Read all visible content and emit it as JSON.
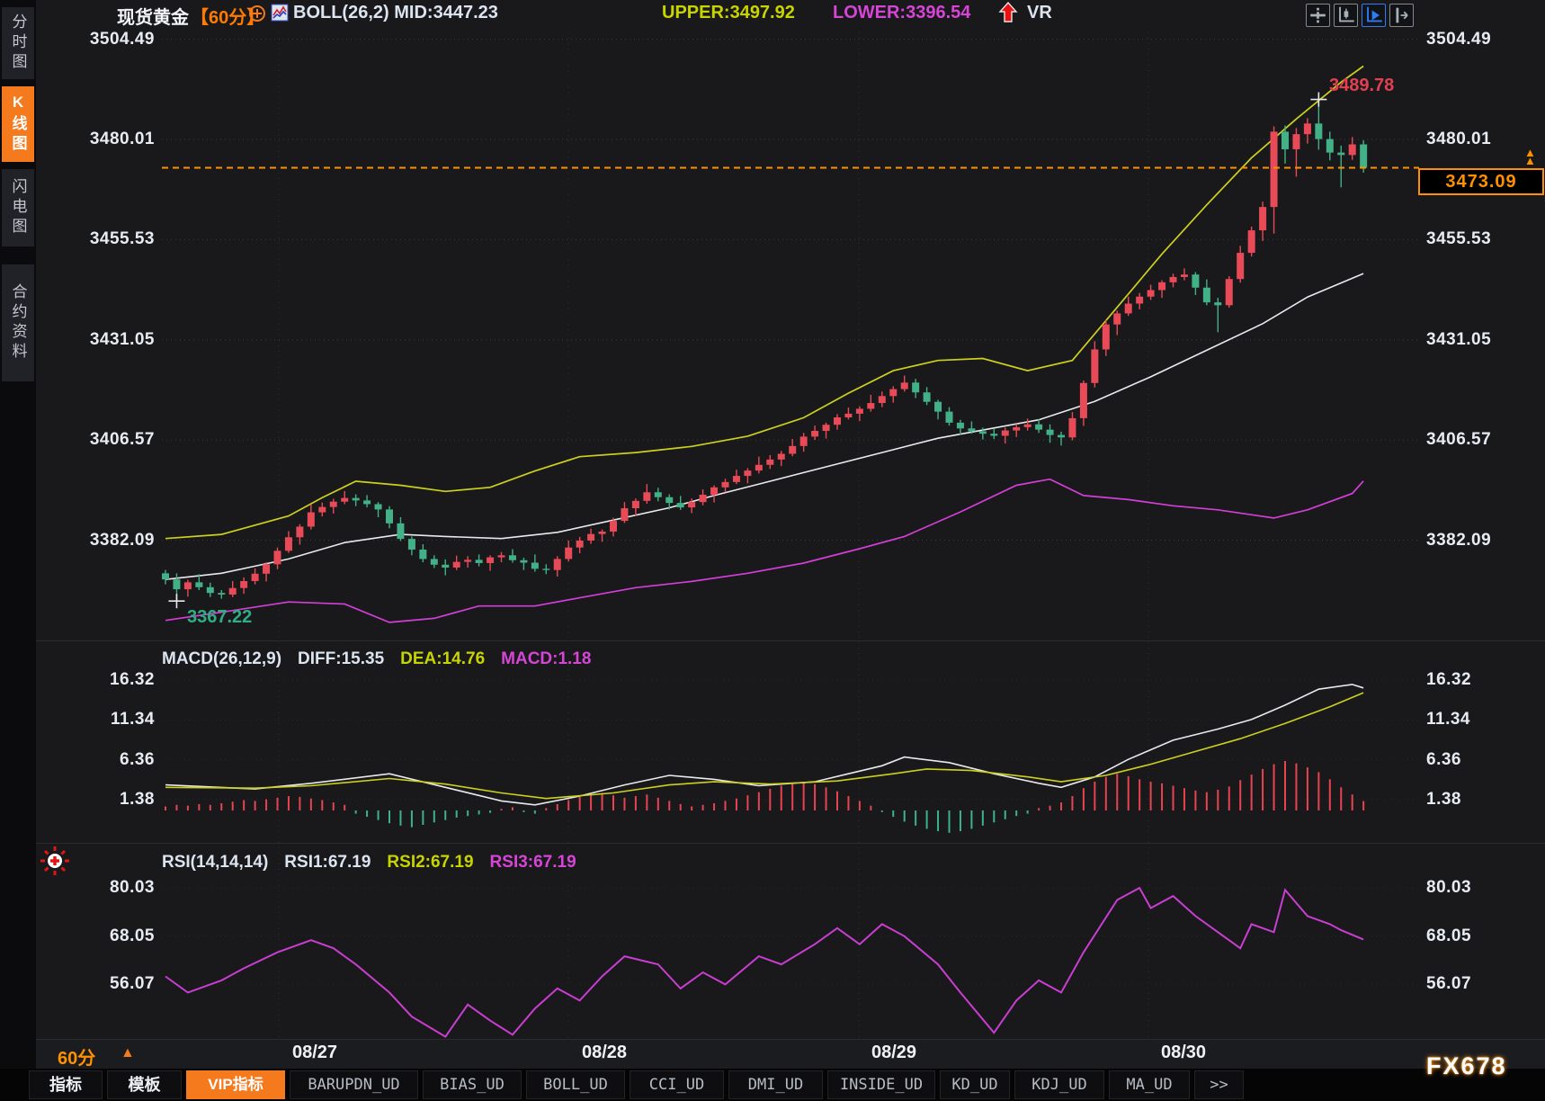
{
  "window": {
    "watermark": "FX678"
  },
  "glyphs": {
    "triangle_up": "▲"
  },
  "colors": {
    "accent_orange": "#f5791d",
    "price_orange": "#ff9100",
    "candle_up": "#e84b57",
    "candle_down": "#43b187",
    "boll_upper_yellow": "#cdd11c",
    "boll_mid_white": "#e8eaee",
    "boll_lower_magenta": "#d33fd6",
    "macd_diff_white": "#e8eaee",
    "macd_dea_yellow": "#cdd11c",
    "macd_hist_up": "#e8434e",
    "macd_hist_down": "#3db387",
    "rsi_line": "#c93ed0",
    "grid": "#3a3b40",
    "grid_v": "#2e2f33",
    "grid_faint": "#26262a",
    "anno_high_red": "#e0404f",
    "anno_low_green": "#2fae84"
  },
  "sidebar": {
    "items": [
      {
        "label": "分时图",
        "active": false
      },
      {
        "label": "K线图",
        "active": true
      },
      {
        "label": "闪电图",
        "active": false
      },
      {
        "label": "合约资料",
        "active": false
      }
    ]
  },
  "header": {
    "symbol": "现货黄金",
    "period": "【60分】",
    "boll_label": "BOLL(26,2)",
    "mid": "MID:3447.23",
    "upper": "UPPER:3497.92",
    "lower": "LOWER:3396.54",
    "vr": "VR"
  },
  "price_box": {
    "value": "3473.09"
  },
  "annotations": {
    "high": "3489.78",
    "low": "3367.22"
  },
  "macd_header": {
    "name": "MACD(26,12,9)",
    "diff": "DIFF:15.35",
    "dea": "DEA:14.76",
    "macd": "MACD:1.18"
  },
  "rsi_header": {
    "name": "RSI(14,14,14)",
    "rsi1": "RSI1:67.19",
    "rsi2": "RSI2:67.19",
    "rsi3": "RSI3:67.19"
  },
  "bottom_axis": {
    "period_label": "60分"
  },
  "bottom_tabs": [
    "指标",
    "模板",
    "VIP指标",
    "BARUPDN_UD",
    "BIAS_UD",
    "BOLL_UD",
    "CCI_UD",
    "DMI_UD",
    "INSIDE_UD",
    "KD_UD",
    "KDJ_UD",
    "MA_UD",
    ">>"
  ],
  "chart_data": {
    "type": "candlestick",
    "title": "现货黄金 60分 K线图",
    "interval": "60分",
    "legend_position": "top",
    "grid": true,
    "price_axis": [
      3504.49,
      3480.01,
      3455.53,
      3431.05,
      3406.57,
      3382.09
    ],
    "dates": [
      "08/27",
      "08/28",
      "08/29",
      "08/30"
    ],
    "current_price": 3473.09,
    "session_high": 3489.78,
    "session_low": 3367.22,
    "high_candle_index": 103,
    "low_candle_index": 1,
    "candles": [
      [
        3374.0,
        3374.8,
        3371.3,
        3372.5
      ],
      [
        3372.5,
        3374.0,
        3367.22,
        3370.1
      ],
      [
        3370.1,
        3372.4,
        3368.3,
        3371.8
      ],
      [
        3371.8,
        3373.8,
        3369.9,
        3370.6
      ],
      [
        3370.6,
        3371.7,
        3368.2,
        3369.2
      ],
      [
        3369.2,
        3369.9,
        3367.8,
        3368.8
      ],
      [
        3368.8,
        3372.1,
        3368.2,
        3370.4
      ],
      [
        3370.4,
        3373.0,
        3369.0,
        3372.1
      ],
      [
        3372.1,
        3375.2,
        3371.3,
        3373.9
      ],
      [
        3373.9,
        3376.7,
        3372.0,
        3376.2
      ],
      [
        3376.2,
        3380.3,
        3375.0,
        3379.5
      ],
      [
        3379.5,
        3384.3,
        3379.0,
        3382.8
      ],
      [
        3382.8,
        3386.0,
        3381.0,
        3385.4
      ],
      [
        3385.4,
        3390.9,
        3384.7,
        3388.9
      ],
      [
        3388.9,
        3391.3,
        3387.9,
        3390.2
      ],
      [
        3390.2,
        3392.2,
        3388.6,
        3391.5
      ],
      [
        3391.5,
        3394.1,
        3390.9,
        3392.4
      ],
      [
        3392.4,
        3393.3,
        3390.4,
        3391.8
      ],
      [
        3391.8,
        3393.1,
        3390.1,
        3390.9
      ],
      [
        3390.9,
        3391.4,
        3387.7,
        3389.6
      ],
      [
        3389.6,
        3390.4,
        3385.0,
        3386.2
      ],
      [
        3386.2,
        3387.7,
        3381.9,
        3382.4
      ],
      [
        3382.4,
        3383.0,
        3378.4,
        3379.8
      ],
      [
        3379.8,
        3381.1,
        3376.7,
        3377.5
      ],
      [
        3377.5,
        3378.4,
        3375.3,
        3376.1
      ],
      [
        3376.1,
        3377.4,
        3373.5,
        3375.4
      ],
      [
        3375.4,
        3378.3,
        3374.8,
        3376.8
      ],
      [
        3376.8,
        3378.2,
        3375.4,
        3377.3
      ],
      [
        3377.3,
        3378.6,
        3375.7,
        3376.5
      ],
      [
        3376.5,
        3378.4,
        3374.6,
        3377.9
      ],
      [
        3377.9,
        3379.2,
        3376.7,
        3378.4
      ],
      [
        3378.4,
        3379.9,
        3376.6,
        3377.2
      ],
      [
        3377.2,
        3377.8,
        3374.8,
        3376.6
      ],
      [
        3376.6,
        3378.6,
        3374.4,
        3375.1
      ],
      [
        3375.1,
        3376.2,
        3373.8,
        3374.8
      ],
      [
        3374.8,
        3378.2,
        3373.2,
        3377.5
      ],
      [
        3377.5,
        3382.0,
        3376.9,
        3380.3
      ],
      [
        3380.3,
        3382.9,
        3378.9,
        3382.0
      ],
      [
        3382.0,
        3384.9,
        3381.2,
        3383.6
      ],
      [
        3383.6,
        3384.7,
        3381.7,
        3384.2
      ],
      [
        3384.2,
        3387.6,
        3383.0,
        3386.8
      ],
      [
        3386.8,
        3391.4,
        3386.3,
        3389.9
      ],
      [
        3389.9,
        3392.3,
        3388.1,
        3391.7
      ],
      [
        3391.7,
        3395.8,
        3391.0,
        3393.8
      ],
      [
        3393.8,
        3394.9,
        3391.6,
        3392.6
      ],
      [
        3392.6,
        3393.3,
        3389.6,
        3391.2
      ],
      [
        3391.2,
        3392.9,
        3389.5,
        3390.1
      ],
      [
        3390.1,
        3392.3,
        3388.7,
        3391.4
      ],
      [
        3391.4,
        3394.5,
        3390.6,
        3393.2
      ],
      [
        3393.2,
        3395.5,
        3391.3,
        3395.0
      ],
      [
        3395.0,
        3397.1,
        3393.8,
        3396.3
      ],
      [
        3396.3,
        3399.3,
        3395.8,
        3397.8
      ],
      [
        3397.8,
        3399.7,
        3396.0,
        3399.1
      ],
      [
        3399.1,
        3402.5,
        3398.4,
        3400.5
      ],
      [
        3400.5,
        3402.9,
        3399.5,
        3401.8
      ],
      [
        3401.8,
        3403.9,
        3400.2,
        3403.2
      ],
      [
        3403.2,
        3406.8,
        3402.6,
        3405.1
      ],
      [
        3405.1,
        3408.3,
        3403.7,
        3407.4
      ],
      [
        3407.4,
        3410.1,
        3406.6,
        3408.8
      ],
      [
        3408.8,
        3410.8,
        3406.9,
        3410.3
      ],
      [
        3410.3,
        3412.9,
        3409.1,
        3412.1
      ],
      [
        3412.1,
        3414.5,
        3411.6,
        3413.0
      ],
      [
        3413.0,
        3414.8,
        3411.2,
        3414.2
      ],
      [
        3414.2,
        3417.6,
        3413.5,
        3415.6
      ],
      [
        3415.6,
        3418.4,
        3414.6,
        3417.3
      ],
      [
        3417.3,
        3419.7,
        3415.7,
        3419.0
      ],
      [
        3419.0,
        3422.3,
        3418.4,
        3420.6
      ],
      [
        3420.6,
        3421.5,
        3416.8,
        3418.2
      ],
      [
        3418.2,
        3419.5,
        3415.1,
        3415.9
      ],
      [
        3415.9,
        3416.4,
        3411.6,
        3413.5
      ],
      [
        3413.5,
        3414.6,
        3410.1,
        3410.8
      ],
      [
        3410.8,
        3411.5,
        3407.8,
        3409.4
      ],
      [
        3409.4,
        3411.1,
        3408.1,
        3408.7
      ],
      [
        3408.7,
        3409.6,
        3406.7,
        3408.1
      ],
      [
        3408.1,
        3409.4,
        3406.8,
        3407.6
      ],
      [
        3407.6,
        3409.6,
        3405.7,
        3408.9
      ],
      [
        3408.9,
        3410.5,
        3407.3,
        3409.7
      ],
      [
        3409.7,
        3411.8,
        3408.9,
        3410.4
      ],
      [
        3410.4,
        3411.7,
        3408.3,
        3409.1
      ],
      [
        3409.1,
        3410.4,
        3405.9,
        3407.8
      ],
      [
        3407.8,
        3408.6,
        3405.2,
        3407.2
      ],
      [
        3407.2,
        3413.4,
        3406.5,
        3411.9
      ],
      [
        3411.9,
        3421.1,
        3410.0,
        3420.5
      ],
      [
        3420.5,
        3430.7,
        3419.4,
        3428.7
      ],
      [
        3428.7,
        3435.9,
        3427.1,
        3434.8
      ],
      [
        3434.8,
        3438.2,
        3432.2,
        3437.5
      ],
      [
        3437.5,
        3441.6,
        3436.9,
        3439.9
      ],
      [
        3439.9,
        3442.5,
        3438.5,
        3441.6
      ],
      [
        3441.6,
        3444.5,
        3440.8,
        3443.2
      ],
      [
        3443.2,
        3445.6,
        3441.3,
        3445.1
      ],
      [
        3445.1,
        3447.2,
        3443.9,
        3446.4
      ],
      [
        3446.4,
        3448.5,
        3445.6,
        3447.0
      ],
      [
        3447.0,
        3447.6,
        3442.0,
        3443.8
      ],
      [
        3443.8,
        3445.8,
        3439.5,
        3440.2
      ],
      [
        3440.2,
        3441.3,
        3432.9,
        3439.5
      ],
      [
        3439.5,
        3446.6,
        3438.9,
        3445.9
      ],
      [
        3445.9,
        3454.0,
        3445.0,
        3452.3
      ],
      [
        3452.3,
        3458.7,
        3451.4,
        3457.8
      ],
      [
        3457.8,
        3464.8,
        3455.2,
        3463.5
      ],
      [
        3463.5,
        3483.2,
        3457.0,
        3481.9
      ],
      [
        3481.9,
        3483.4,
        3474.1,
        3477.6
      ],
      [
        3477.6,
        3482.8,
        3470.9,
        3481.3
      ],
      [
        3481.3,
        3485.2,
        3479.0,
        3483.9
      ],
      [
        3483.9,
        3489.78,
        3477.5,
        3480.1
      ],
      [
        3480.1,
        3481.9,
        3474.9,
        3476.8
      ],
      [
        3476.8,
        3478.5,
        3468.3,
        3476.2
      ],
      [
        3476.2,
        3480.6,
        3475.0,
        3478.8
      ],
      [
        3478.8,
        3479.8,
        3471.9,
        3473.09
      ]
    ],
    "boll": {
      "params": "BOLL(26,2)",
      "mid_final": 3447.23,
      "upper_final": 3497.92,
      "lower_final": 3396.54,
      "upper": {
        "i": [
          0,
          5,
          11,
          14,
          17,
          21,
          25,
          29,
          33,
          37,
          42,
          47,
          52,
          57,
          61,
          65,
          69,
          73,
          77,
          81,
          85,
          89,
          93,
          97,
          101,
          105,
          107
        ],
        "v": [
          3382.5,
          3383.5,
          3388,
          3392.5,
          3396.5,
          3395.5,
          3394,
          3395,
          3399,
          3402.5,
          3403.5,
          3405,
          3407.5,
          3412,
          3418,
          3423.5,
          3426,
          3426.5,
          3423.5,
          3426,
          3439,
          3452,
          3464,
          3475.5,
          3485,
          3494,
          3497.92
        ]
      },
      "mid": {
        "i": [
          0,
          5,
          11,
          16,
          21,
          25,
          30,
          35,
          40,
          45,
          49,
          54,
          59,
          64,
          69,
          74,
          78,
          83,
          88,
          93,
          98,
          102,
          107
        ],
        "v": [
          3372.5,
          3374,
          3377.5,
          3381.5,
          3383.5,
          3383,
          3382.5,
          3384,
          3387,
          3390,
          3393,
          3396.5,
          3400,
          3403.5,
          3407,
          3409.5,
          3411.5,
          3416,
          3422,
          3428.5,
          3435,
          3441.5,
          3447.23
        ]
      },
      "lower": {
        "i": [
          0,
          5,
          11,
          16,
          20,
          24,
          28,
          33,
          37,
          42,
          47,
          52,
          57,
          62,
          66,
          71,
          76,
          79,
          82,
          86,
          90,
          94,
          99,
          102,
          106,
          107
        ],
        "v": [
          3362.5,
          3364.5,
          3367,
          3366.5,
          3362,
          3363,
          3366,
          3366,
          3368,
          3370.5,
          3372,
          3374,
          3376.5,
          3380,
          3383,
          3389,
          3395.5,
          3397,
          3393,
          3392,
          3390.5,
          3389.5,
          3387.5,
          3389.5,
          3393.5,
          3396.54
        ]
      }
    },
    "macd": {
      "params": "MACD(26,12,9)",
      "axis": [
        16.32,
        11.34,
        6.36,
        1.38
      ],
      "diff_final": 15.35,
      "dea_final": 14.76,
      "macd_final": 1.18,
      "diff": {
        "i": [
          0,
          8,
          13,
          20,
          25,
          30,
          33,
          37,
          41,
          45,
          49,
          53,
          58,
          61,
          64,
          66,
          70,
          74,
          78,
          80,
          83,
          86,
          90,
          94,
          97,
          100,
          103,
          106,
          107
        ],
        "v": [
          3.2,
          2.7,
          3.4,
          4.6,
          2.9,
          1.2,
          0.7,
          1.8,
          3.2,
          4.4,
          3.9,
          3.1,
          3.6,
          4.6,
          5.6,
          6.7,
          6.0,
          4.6,
          3.4,
          2.9,
          4.2,
          6.4,
          8.8,
          10.2,
          11.4,
          13.2,
          15.2,
          15.8,
          15.35
        ]
      },
      "dea": {
        "i": [
          0,
          8,
          13,
          20,
          25,
          30,
          34,
          40,
          45,
          49,
          54,
          60,
          65,
          68,
          72,
          77,
          80,
          84,
          88,
          92,
          96,
          100,
          104,
          107
        ],
        "v": [
          2.9,
          2.8,
          3.1,
          4.0,
          3.3,
          2.2,
          1.5,
          2.2,
          3.2,
          3.6,
          3.3,
          3.7,
          4.6,
          5.2,
          5.0,
          4.2,
          3.6,
          4.4,
          5.8,
          7.4,
          9.0,
          10.9,
          13.0,
          14.76
        ]
      },
      "hist": [
        0.5,
        0.7,
        0.6,
        0.8,
        0.7,
        0.9,
        1.1,
        1.3,
        1.2,
        1.4,
        1.6,
        1.8,
        1.7,
        1.5,
        1.3,
        1.0,
        0.7,
        -0.4,
        -0.8,
        -1.2,
        -1.6,
        -1.9,
        -2.1,
        -1.8,
        -1.5,
        -1.2,
        -0.9,
        -0.7,
        -0.5,
        -0.3,
        0.2,
        0.4,
        -0.2,
        -0.4,
        0.3,
        0.8,
        1.3,
        1.7,
        2.0,
        2.2,
        1.9,
        1.6,
        1.8,
        2.0,
        1.6,
        1.2,
        0.8,
        0.5,
        0.7,
        0.9,
        1.2,
        1.5,
        1.9,
        2.3,
        2.7,
        3.1,
        3.4,
        3.6,
        3.3,
        2.9,
        2.4,
        1.8,
        1.2,
        0.6,
        -0.2,
        -0.8,
        -1.4,
        -1.9,
        -2.3,
        -2.6,
        -2.8,
        -2.6,
        -2.3,
        -1.9,
        -1.5,
        -1.1,
        -0.7,
        -0.4,
        0.3,
        0.6,
        1.0,
        1.8,
        2.8,
        3.6,
        4.2,
        4.6,
        4.3,
        3.9,
        3.6,
        3.4,
        3.1,
        2.8,
        2.5,
        2.3,
        2.6,
        3.0,
        3.8,
        4.5,
        5.2,
        5.8,
        6.2,
        5.9,
        5.4,
        4.8,
        3.9,
        2.9,
        2.0,
        1.18
      ]
    },
    "rsi": {
      "params": "RSI(14,14,14)",
      "axis": [
        80.03,
        68.05,
        56.07
      ],
      "rsi1_final": 67.19,
      "rsi2_final": 67.19,
      "rsi3_final": 67.19,
      "values": {
        "i": [
          0,
          2,
          5,
          7,
          10,
          13,
          15,
          17,
          20,
          22,
          25,
          27,
          29,
          31,
          33,
          35,
          37,
          39,
          41,
          44,
          46,
          48,
          50,
          53,
          55,
          58,
          60,
          62,
          64,
          66,
          69,
          71,
          74,
          76,
          78,
          80,
          82,
          85,
          87,
          88,
          90,
          92,
          94,
          96,
          97,
          99,
          100,
          102,
          104,
          105,
          107
        ],
        "v": [
          58,
          54,
          57,
          60,
          64,
          67,
          65,
          61,
          54,
          48,
          43,
          51,
          47,
          43.5,
          50,
          55,
          52,
          58,
          63,
          61,
          55,
          59,
          56,
          63,
          61,
          66,
          70,
          66,
          71,
          68,
          61,
          54,
          44,
          52,
          57,
          54,
          64,
          77,
          80,
          75,
          78,
          73,
          69,
          65,
          71,
          69,
          79.5,
          73,
          71,
          69.5,
          67.19
        ]
      }
    }
  }
}
